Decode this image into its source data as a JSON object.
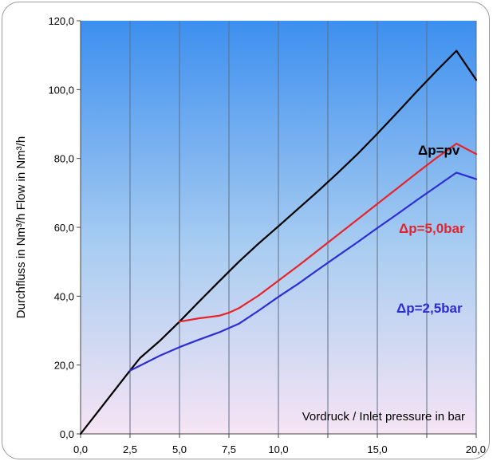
{
  "chart_data": {
    "type": "line",
    "xlabel": "Vordruck / Inlet pressure in bar",
    "ylabel": "Durchfluss in Nm³/h  Flow in Nm³/h",
    "xlim": [
      0,
      20
    ],
    "ylim": [
      0,
      120
    ],
    "x_ticks": [
      0,
      2.5,
      5,
      7.5,
      10,
      12.5,
      15,
      17.5,
      20
    ],
    "x_tick_labels": [
      "0,0",
      "2,5",
      "5,0",
      "7,5",
      "10,0",
      "",
      "15,0",
      "",
      "20,0"
    ],
    "y_ticks": [
      0,
      20,
      40,
      60,
      80,
      100,
      120
    ],
    "y_tick_labels": [
      "0,0",
      "20,0",
      "40,0",
      "60,0",
      "80,0",
      "100,0",
      "120,0"
    ],
    "grid": "vertical",
    "background": {
      "top_color": "#3c8fef",
      "bottom_color": "#f6e4f4"
    },
    "series": [
      {
        "name": "Δp=pv",
        "color": "#000000",
        "x": [
          0,
          2.5,
          3,
          4,
          5,
          6,
          7,
          8,
          9,
          10,
          11,
          12,
          13,
          14,
          15,
          16,
          17,
          18,
          19,
          20
        ],
        "y": [
          0,
          18.4,
          22,
          27,
          32.6,
          38.5,
          44.3,
          50,
          55.3,
          60.3,
          65.4,
          70.5,
          75.8,
          81.3,
          87.2,
          93.3,
          99.5,
          105.5,
          111.3,
          102.8
        ]
      },
      {
        "name": "Δp=5,0bar",
        "color": "#e8232a",
        "x": [
          5,
          6,
          7,
          7.5,
          8,
          9,
          10,
          11,
          12,
          13,
          14,
          15,
          16,
          17,
          18,
          19,
          20
        ],
        "y": [
          32.6,
          33.6,
          34.3,
          35.2,
          36.5,
          40.2,
          44.5,
          48.8,
          53.3,
          57.8,
          62.3,
          66.8,
          71.3,
          75.8,
          80.2,
          84.3,
          81.3
        ]
      },
      {
        "name": "Δp=2,5bar",
        "color": "#2c2ed4",
        "x": [
          2.5,
          3,
          4,
          5,
          6,
          7,
          8,
          9,
          10,
          11,
          12,
          13,
          14,
          15,
          16,
          17,
          18,
          19,
          20
        ],
        "y": [
          18.4,
          19.8,
          22.7,
          25.2,
          27.4,
          29.5,
          32,
          35.8,
          39.8,
          43.6,
          47.7,
          51.7,
          55.7,
          59.8,
          63.8,
          67.9,
          71.9,
          75.9,
          74
        ]
      }
    ]
  }
}
